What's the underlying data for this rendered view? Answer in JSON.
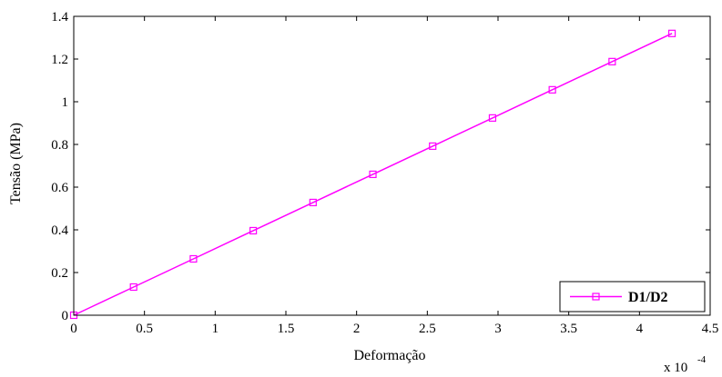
{
  "chart_data": {
    "type": "line",
    "title": "",
    "xlabel": "Deformação",
    "ylabel": "Tensão (MPa)",
    "x_multiplier_label": "x 10",
    "x_multiplier_exponent": "-4",
    "xlim": [
      0,
      4.5
    ],
    "ylim": [
      0,
      1.4
    ],
    "x_ticks": [
      "0",
      "0.5",
      "1",
      "1.5",
      "2",
      "2.5",
      "3",
      "3.5",
      "4",
      "4.5"
    ],
    "y_ticks": [
      "0",
      "0.2",
      "0.4",
      "0.6",
      "0.8",
      "1",
      "1.2",
      "1.4"
    ],
    "grid": false,
    "legend_position": "bottom-right",
    "series": [
      {
        "name": "D1/D2",
        "color": "#ff00ff",
        "marker": "square",
        "x": [
          0,
          0.423,
          0.846,
          1.269,
          1.692,
          2.115,
          2.538,
          2.961,
          3.384,
          3.807,
          4.23
        ],
        "y": [
          0,
          0.132,
          0.264,
          0.396,
          0.528,
          0.66,
          0.792,
          0.924,
          1.056,
          1.188,
          1.32
        ]
      }
    ]
  }
}
